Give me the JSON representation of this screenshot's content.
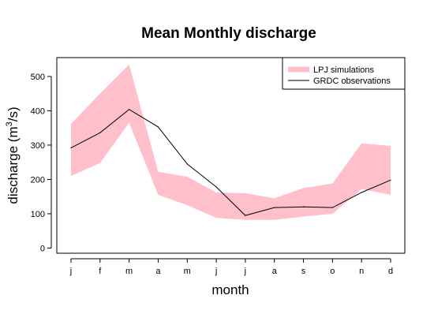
{
  "chart_data": {
    "type": "area",
    "title": "Mean Monthly discharge",
    "xlabel": "month",
    "ylabel_main": "discharge (m",
    "ylabel_sup": "3",
    "ylabel_end": "/s)",
    "categories": [
      "j",
      "f",
      "m",
      "a",
      "m",
      "j",
      "j",
      "a",
      "s",
      "o",
      "n",
      "d"
    ],
    "ylim": [
      -15,
      555
    ],
    "yticks": [
      0,
      100,
      200,
      300,
      400,
      500
    ],
    "grid": false,
    "legend_position": "top-right",
    "colors": {
      "band": "#ffc0cb",
      "line": "#000000",
      "axis": "#000000"
    },
    "series": [
      {
        "name": "LPJ simulations",
        "kind": "band",
        "lower": [
          210,
          248,
          365,
          155,
          125,
          88,
          82,
          82,
          92,
          100,
          172,
          155
        ],
        "upper": [
          362,
          450,
          535,
          222,
          208,
          162,
          160,
          145,
          175,
          188,
          305,
          298
        ]
      },
      {
        "name": "GRDC observations",
        "kind": "line",
        "values": [
          292,
          336,
          404,
          353,
          245,
          178,
          95,
          118,
          120,
          118,
          162,
          198
        ]
      }
    ]
  }
}
